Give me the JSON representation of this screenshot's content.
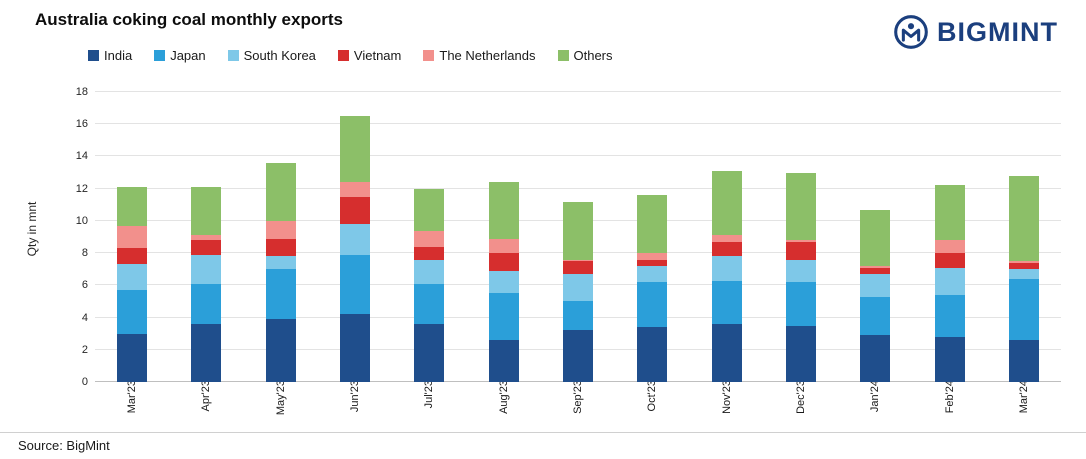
{
  "title": "Australia coking coal monthly exports",
  "source": "Source: BigMint",
  "logo": {
    "text": "BIGMINT",
    "color": "#1b3f7e"
  },
  "chart_data": {
    "type": "bar",
    "stacked": true,
    "title": "Australia coking coal monthly exports",
    "xlabel": "",
    "ylabel": "Qty in mnt",
    "ylim": [
      0,
      18
    ],
    "ytick_step": 2,
    "grid": "horizontal",
    "legend_position": "top",
    "categories": [
      "Mar'23",
      "Apr'23",
      "May'23",
      "Jun'23",
      "Jul'23",
      "Aug'23",
      "Sep'23",
      "Oct'23",
      "Nov'23",
      "Dec'23",
      "Jan'24",
      "Feb'24",
      "Mar'24"
    ],
    "series": [
      {
        "name": "India",
        "color": "#1f4e8c",
        "values": [
          3.0,
          3.6,
          3.9,
          4.2,
          3.6,
          2.6,
          3.2,
          3.4,
          3.6,
          3.5,
          2.9,
          2.8,
          2.6
        ]
      },
      {
        "name": "Japan",
        "color": "#2b9fd9",
        "values": [
          2.7,
          2.5,
          3.1,
          3.7,
          2.5,
          2.9,
          1.8,
          2.8,
          2.7,
          2.7,
          2.4,
          2.6,
          3.8
        ]
      },
      {
        "name": "South Korea",
        "color": "#7ec8e8",
        "values": [
          1.6,
          1.8,
          0.8,
          1.9,
          1.5,
          1.4,
          1.7,
          1.0,
          1.5,
          1.4,
          1.4,
          1.7,
          0.6
        ]
      },
      {
        "name": "Vietnam",
        "color": "#d62e2e",
        "values": [
          1.0,
          0.9,
          1.1,
          1.7,
          0.8,
          1.1,
          0.8,
          0.4,
          0.9,
          1.1,
          0.4,
          0.9,
          0.4
        ]
      },
      {
        "name": "The Netherlands",
        "color": "#f2908c",
        "values": [
          1.4,
          0.3,
          1.1,
          0.9,
          1.0,
          0.9,
          0.1,
          0.4,
          0.4,
          0.1,
          0.1,
          0.8,
          0.1
        ]
      },
      {
        "name": "Others",
        "color": "#8cbf68",
        "values": [
          2.4,
          3.0,
          3.6,
          4.1,
          2.6,
          3.5,
          3.6,
          3.6,
          4.0,
          4.2,
          3.5,
          3.4,
          5.3
        ]
      }
    ],
    "totals": [
      12.1,
      12.1,
      13.6,
      16.5,
      12.0,
      12.4,
      11.2,
      11.6,
      13.1,
      13.0,
      10.7,
      12.2,
      12.8
    ]
  }
}
